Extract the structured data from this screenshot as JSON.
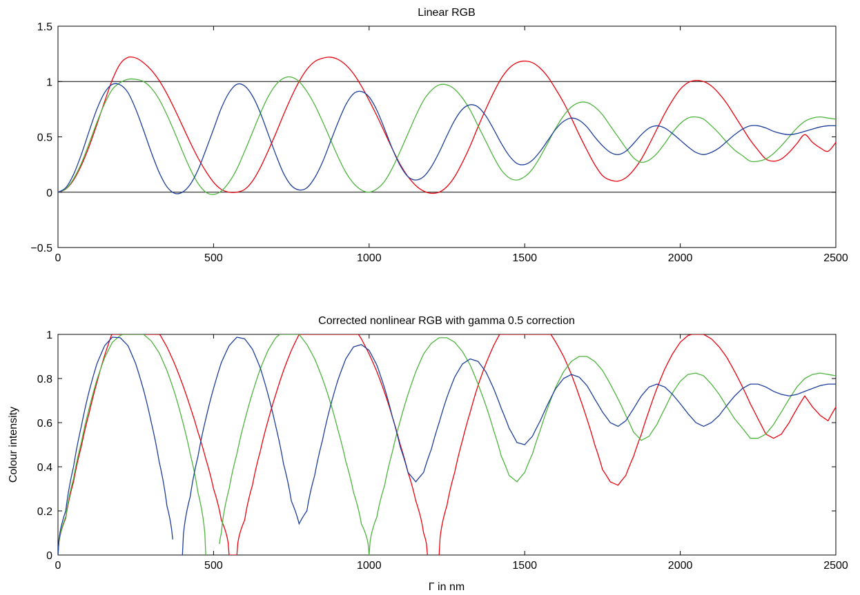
{
  "chart_data": [
    {
      "type": "line",
      "title": "Linear RGB",
      "xlabel": "",
      "ylabel": "",
      "xlim": [
        0,
        2500
      ],
      "ylim": [
        -0.5,
        1.5
      ],
      "grid": false,
      "legend": "none",
      "x_ticks": [
        0,
        500,
        1000,
        1500,
        2000,
        2500
      ],
      "x_tick_labels": [
        "0",
        "500",
        "1000",
        "1500",
        "2000",
        "2500"
      ],
      "y_ticks": [
        -0.5,
        0,
        0.5,
        1,
        1.5
      ],
      "y_tick_labels": [
        "−0.5",
        "0",
        "0.5",
        "1",
        "1.5"
      ],
      "reference_lines_y": [
        0,
        1
      ],
      "x": [
        0,
        25,
        50,
        75,
        100,
        125,
        150,
        175,
        200,
        225,
        250,
        275,
        300,
        325,
        350,
        375,
        400,
        425,
        450,
        475,
        500,
        525,
        550,
        575,
        600,
        625,
        650,
        675,
        700,
        725,
        750,
        775,
        800,
        825,
        850,
        875,
        900,
        925,
        950,
        975,
        1000,
        1025,
        1050,
        1075,
        1100,
        1125,
        1150,
        1175,
        1200,
        1225,
        1250,
        1275,
        1300,
        1325,
        1350,
        1375,
        1400,
        1425,
        1450,
        1475,
        1500,
        1525,
        1550,
        1575,
        1600,
        1625,
        1650,
        1675,
        1700,
        1725,
        1750,
        1775,
        1800,
        1825,
        1850,
        1875,
        1900,
        1925,
        1950,
        1975,
        2000,
        2025,
        2050,
        2075,
        2100,
        2125,
        2150,
        2175,
        2200,
        2225,
        2250,
        2275,
        2300,
        2325,
        2350,
        2375,
        2400,
        2425,
        2450,
        2475,
        2500
      ],
      "series": [
        {
          "color": "#e8000b",
          "values": [
            0.0,
            0.028,
            0.11,
            0.242,
            0.413,
            0.611,
            0.819,
            1.018,
            1.16,
            1.218,
            1.213,
            1.17,
            1.103,
            1.01,
            0.89,
            0.75,
            0.6,
            0.45,
            0.31,
            0.19,
            0.09,
            0.025,
            0.0,
            0.0,
            0.025,
            0.1,
            0.22,
            0.37,
            0.53,
            0.7,
            0.86,
            1.0,
            1.11,
            1.18,
            1.21,
            1.22,
            1.2,
            1.15,
            1.07,
            0.96,
            0.83,
            0.69,
            0.54,
            0.39,
            0.25,
            0.14,
            0.06,
            0.01,
            -0.01,
            0.0,
            0.05,
            0.14,
            0.27,
            0.42,
            0.59,
            0.75,
            0.9,
            1.03,
            1.12,
            1.17,
            1.185,
            1.17,
            1.12,
            1.04,
            0.93,
            0.81,
            0.67,
            0.52,
            0.38,
            0.25,
            0.15,
            0.11,
            0.1,
            0.13,
            0.2,
            0.3,
            0.43,
            0.57,
            0.71,
            0.83,
            0.93,
            0.99,
            1.01,
            1.0,
            0.96,
            0.89,
            0.8,
            0.69,
            0.58,
            0.47,
            0.38,
            0.3,
            0.28,
            0.3,
            0.36,
            0.44,
            0.52,
            0.45,
            0.4,
            0.37,
            0.45
          ]
        },
        {
          "color": "#4cb43c",
          "values": [
            0.0,
            0.03,
            0.12,
            0.26,
            0.44,
            0.63,
            0.8,
            0.93,
            0.99,
            1.02,
            1.02,
            1.0,
            0.94,
            0.84,
            0.7,
            0.54,
            0.37,
            0.21,
            0.08,
            0.0,
            -0.02,
            0.01,
            0.09,
            0.21,
            0.37,
            0.54,
            0.71,
            0.86,
            0.97,
            1.03,
            1.04,
            1.0,
            0.91,
            0.79,
            0.64,
            0.48,
            0.32,
            0.18,
            0.08,
            0.02,
            0.0,
            0.03,
            0.1,
            0.22,
            0.37,
            0.53,
            0.69,
            0.83,
            0.92,
            0.97,
            0.97,
            0.93,
            0.85,
            0.74,
            0.6,
            0.46,
            0.32,
            0.2,
            0.13,
            0.11,
            0.14,
            0.21,
            0.32,
            0.45,
            0.58,
            0.69,
            0.77,
            0.81,
            0.81,
            0.77,
            0.7,
            0.6,
            0.5,
            0.4,
            0.31,
            0.27,
            0.29,
            0.35,
            0.44,
            0.54,
            0.62,
            0.67,
            0.68,
            0.66,
            0.6,
            0.53,
            0.45,
            0.38,
            0.33,
            0.28,
            0.28,
            0.3,
            0.35,
            0.42,
            0.5,
            0.58,
            0.64,
            0.67,
            0.68,
            0.67,
            0.66
          ]
        },
        {
          "color": "#1b3d9a",
          "values": [
            0.0,
            0.04,
            0.16,
            0.34,
            0.55,
            0.75,
            0.9,
            0.975,
            0.97,
            0.9,
            0.75,
            0.56,
            0.36,
            0.18,
            0.05,
            -0.01,
            0.0,
            0.07,
            0.2,
            0.38,
            0.57,
            0.76,
            0.9,
            0.975,
            0.96,
            0.87,
            0.72,
            0.53,
            0.34,
            0.17,
            0.06,
            0.02,
            0.04,
            0.13,
            0.27,
            0.45,
            0.63,
            0.79,
            0.89,
            0.91,
            0.86,
            0.74,
            0.57,
            0.39,
            0.24,
            0.14,
            0.11,
            0.14,
            0.23,
            0.36,
            0.51,
            0.65,
            0.75,
            0.79,
            0.77,
            0.69,
            0.57,
            0.44,
            0.33,
            0.26,
            0.25,
            0.29,
            0.37,
            0.47,
            0.57,
            0.64,
            0.67,
            0.65,
            0.59,
            0.5,
            0.42,
            0.36,
            0.34,
            0.37,
            0.44,
            0.52,
            0.58,
            0.6,
            0.58,
            0.53,
            0.47,
            0.41,
            0.36,
            0.34,
            0.36,
            0.4,
            0.46,
            0.52,
            0.57,
            0.6,
            0.6,
            0.58,
            0.55,
            0.53,
            0.52,
            0.53,
            0.55,
            0.57,
            0.59,
            0.6,
            0.6
          ]
        }
      ]
    },
    {
      "type": "line",
      "title": "Corrected nonlinear RGB with gamma 0.5 correction",
      "xlabel": "Γ in nm",
      "ylabel": "Colour intensity",
      "xlim": [
        0,
        2500
      ],
      "ylim": [
        0,
        1
      ],
      "grid": false,
      "legend": "none",
      "x_ticks": [
        0,
        500,
        1000,
        1500,
        2000,
        2500
      ],
      "x_tick_labels": [
        "0",
        "500",
        "1000",
        "1500",
        "2000",
        "2500"
      ],
      "y_ticks": [
        0,
        0.2,
        0.4,
        0.6,
        0.8,
        1
      ],
      "y_tick_labels": [
        "0",
        "0.2",
        "0.4",
        "0.6",
        "0.8",
        "1"
      ],
      "transform": "y = clip(sqrt(linear), 0, 1); undefined where linear < 0"
    }
  ]
}
